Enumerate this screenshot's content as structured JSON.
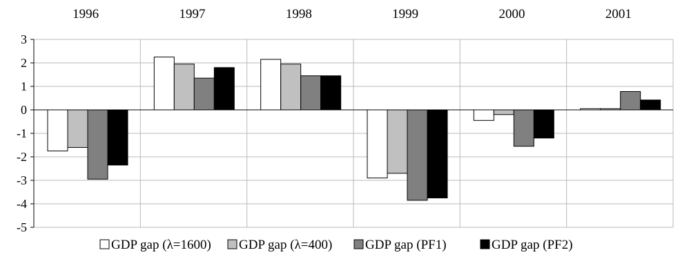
{
  "chart_data": {
    "type": "bar",
    "categories": [
      "1996",
      "1997",
      "1998",
      "1999",
      "2000",
      "2001"
    ],
    "category_label_position": "top",
    "ylim": [
      -5,
      3
    ],
    "yticks": [
      3,
      2,
      1,
      0,
      -1,
      -2,
      -3,
      -4,
      -5
    ],
    "ytick_labels": [
      "3",
      "2",
      "1",
      "0",
      "-1",
      "-2",
      "-3",
      "-4",
      "-5"
    ],
    "grid": true,
    "legend_position": "bottom",
    "series": [
      {
        "name": "GDP gap (λ=1600)",
        "color": "#ffffff",
        "values": [
          -1.75,
          2.25,
          2.15,
          -2.9,
          -0.45,
          0.05
        ]
      },
      {
        "name": "GDP gap (λ=400)",
        "color": "#c0c0c0",
        "values": [
          -1.6,
          1.95,
          1.95,
          -2.7,
          -0.2,
          0.05
        ]
      },
      {
        "name": "GDP gap (PF1)",
        "color": "#808080",
        "values": [
          -2.95,
          1.35,
          1.45,
          -3.85,
          -1.55,
          0.78
        ]
      },
      {
        "name": "GDP gap (PF2)",
        "color": "#000000",
        "values": [
          -2.35,
          1.8,
          1.45,
          -3.75,
          -1.2,
          0.42
        ]
      }
    ]
  }
}
